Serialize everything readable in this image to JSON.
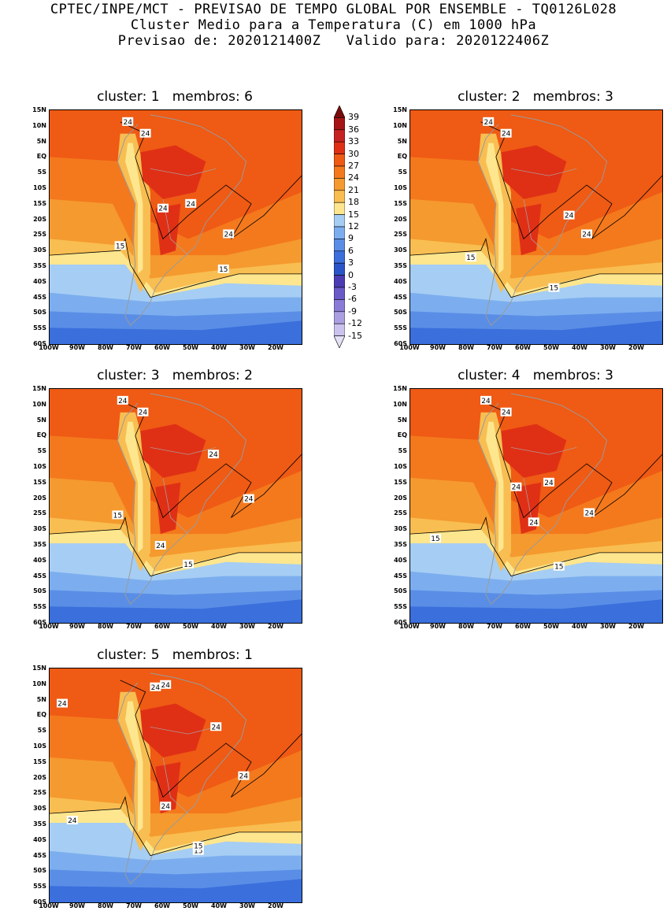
{
  "header": {
    "line1": "CPTEC/INPE/MCT - PREVISAO DE TEMPO GLOBAL POR ENSEMBLE - TQ0126L028",
    "line2": "Cluster Medio para a Temperatura (C) em 1000 hPa",
    "line3": "Previsao de: 2020121400Z   Valido para: 2020122406Z"
  },
  "panels": [
    {
      "title": "cluster: 1   membros: 6",
      "contour_labels": [
        "24",
        "24",
        "24",
        "24",
        "24",
        "15",
        "15"
      ]
    },
    {
      "title": "cluster: 2   membros: 3",
      "contour_labels": [
        "24",
        "24",
        "24",
        "24",
        "15",
        "15"
      ]
    },
    {
      "title": "cluster: 3   membros: 2",
      "contour_labels": [
        "24",
        "24",
        "24",
        "24",
        "24",
        "15",
        "15"
      ]
    },
    {
      "title": "cluster: 4   membros: 3",
      "contour_labels": [
        "24",
        "24",
        "24",
        "24",
        "24",
        "24",
        "15",
        "15"
      ]
    },
    {
      "title": "cluster: 5   membros: 1",
      "contour_labels": [
        "24",
        "24",
        "24",
        "24",
        "24",
        "24",
        "24",
        "15",
        "15"
      ]
    }
  ],
  "axes": {
    "lat_ticks": [
      "15N",
      "10N",
      "5N",
      "EQ",
      "5S",
      "10S",
      "15S",
      "20S",
      "25S",
      "30S",
      "35S",
      "40S",
      "45S",
      "50S",
      "55S",
      "60S"
    ],
    "lon_ticks": [
      "100W",
      "90W",
      "80W",
      "70W",
      "60W",
      "50W",
      "40W",
      "30W",
      "20W"
    ]
  },
  "colorbar": {
    "labels": [
      "39",
      "36",
      "33",
      "30",
      "27",
      "24",
      "21",
      "18",
      "15",
      "12",
      "9",
      "6",
      "3",
      "0",
      "-3",
      "-6",
      "-9",
      "-12",
      "-15"
    ],
    "colors": [
      "#7a0b0b",
      "#a51515",
      "#c62222",
      "#df3016",
      "#ef5a14",
      "#f4791d",
      "#f59a2e",
      "#f8be52",
      "#fde68e",
      "#a6cdf3",
      "#7caeef",
      "#5a8ee6",
      "#3a6fdc",
      "#2a55c8",
      "#4b3cb4",
      "#6a5ac8",
      "#8a7cd6",
      "#ab9fe2",
      "#cbc3ee",
      "#e4e0f6"
    ]
  }
}
